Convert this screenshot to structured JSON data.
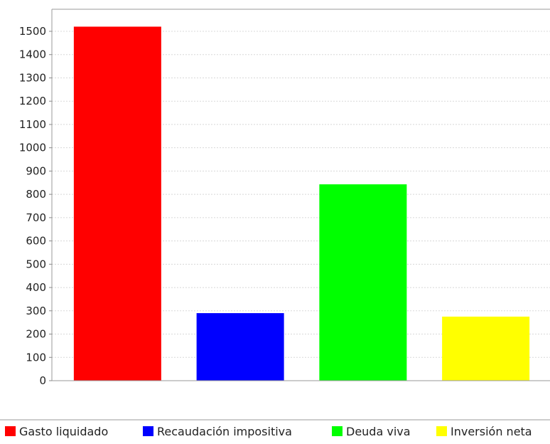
{
  "chart_data": {
    "type": "bar",
    "title": "",
    "xlabel": "",
    "ylabel": "",
    "categories": [
      "Gasto liquidado",
      "Recaudación impositiva",
      "Deuda viva",
      "Inversión neta"
    ],
    "values": [
      1520,
      290,
      843,
      275
    ],
    "colors": [
      "#ff0000",
      "#0000ff",
      "#00ff00",
      "#ffff00"
    ],
    "ylim": [
      0,
      1600
    ],
    "yticks": [
      0,
      100,
      200,
      300,
      400,
      500,
      600,
      700,
      800,
      900,
      1000,
      1100,
      1200,
      1300,
      1400,
      1500
    ],
    "grid": true,
    "legend_position": "bottom"
  }
}
